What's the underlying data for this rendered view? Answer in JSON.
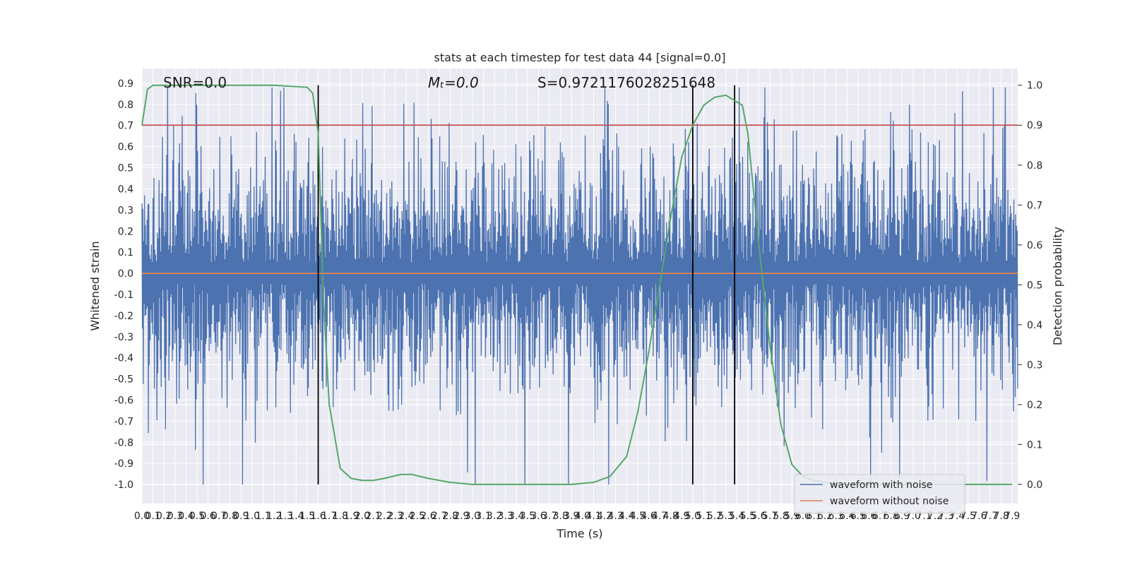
{
  "chart_data": {
    "type": "line",
    "title": "stats at each timestep for test data 44 [signal=0.0]",
    "xlabel": "Time (s)",
    "ylabel": "Whitened strain",
    "y2label": "Detection probability",
    "xlim": [
      0.0,
      7.95
    ],
    "ylim": [
      -1.09,
      0.97
    ],
    "y2lim": [
      -0.048,
      1.042
    ],
    "yticks": [
      -1.0,
      -0.9,
      -0.8,
      -0.7,
      -0.6,
      -0.5,
      -0.4,
      -0.3,
      -0.2,
      -0.1,
      0.0,
      0.1,
      0.2,
      0.3,
      0.4,
      0.5,
      0.6,
      0.7,
      0.8,
      0.9
    ],
    "y2ticks": [
      0.0,
      0.1,
      0.2,
      0.3,
      0.4,
      0.5,
      0.6,
      0.7,
      0.8,
      0.9,
      1.0
    ],
    "xtick_step": 0.1,
    "xtick_count": 80,
    "annotations": {
      "snr": "SNR=0.0",
      "mc": "Mₜ=0.0",
      "s": "S=0.9721176028251648"
    },
    "series": [
      {
        "name": "waveform with noise",
        "color": "#4c72b0",
        "axis": "left",
        "kind": "noise",
        "sample_count": 2048,
        "amplitude_range": [
          -1.0,
          0.88
        ]
      },
      {
        "name": "waveform without noise",
        "color": "#dd8452",
        "axis": "left",
        "x": [
          0.0,
          7.95
        ],
        "y": [
          0.0,
          0.0
        ]
      },
      {
        "name": "detection probability",
        "color": "#55a868",
        "axis": "right",
        "x": [
          0.0,
          0.05,
          0.1,
          0.3,
          0.8,
          1.2,
          1.5,
          1.55,
          1.6,
          1.65,
          1.7,
          1.8,
          1.9,
          2.0,
          2.1,
          2.2,
          2.35,
          2.45,
          2.6,
          2.8,
          3.0,
          3.3,
          3.6,
          3.9,
          4.1,
          4.25,
          4.4,
          4.5,
          4.6,
          4.7,
          4.8,
          4.9,
          5.0,
          5.1,
          5.2,
          5.3,
          5.45,
          5.5,
          5.6,
          5.7,
          5.8,
          5.9,
          6.0,
          6.1,
          6.3,
          7.9
        ],
        "y": [
          0.9,
          0.99,
          1.0,
          1.0,
          1.0,
          1.0,
          0.995,
          0.98,
          0.88,
          0.45,
          0.2,
          0.04,
          0.015,
          0.01,
          0.01,
          0.015,
          0.025,
          0.025,
          0.015,
          0.005,
          0.0,
          0.0,
          0.0,
          0.0,
          0.005,
          0.02,
          0.07,
          0.18,
          0.33,
          0.5,
          0.67,
          0.82,
          0.9,
          0.95,
          0.97,
          0.975,
          0.95,
          0.88,
          0.6,
          0.35,
          0.15,
          0.05,
          0.02,
          0.01,
          0.0,
          0.0
        ]
      }
    ],
    "threshold_line": {
      "y2": 0.9,
      "color": "#c44e52"
    },
    "vertical_lines": [
      1.6,
      5.0,
      5.38
    ],
    "legend": {
      "placement": "bottom-right",
      "entries": [
        {
          "label": "waveform with noise",
          "color": "#4c72b0"
        },
        {
          "label": "waveform without noise",
          "color": "#dd8452"
        }
      ]
    }
  }
}
